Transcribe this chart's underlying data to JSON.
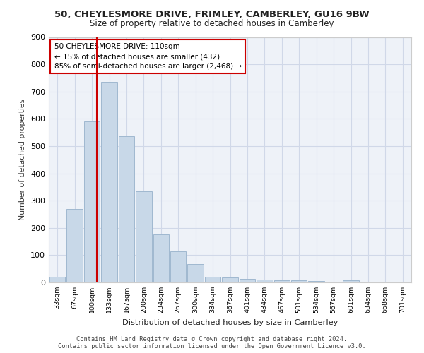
{
  "title1": "50, CHEYLESMORE DRIVE, FRIMLEY, CAMBERLEY, GU16 9BW",
  "title2": "Size of property relative to detached houses in Camberley",
  "xlabel": "Distribution of detached houses by size in Camberley",
  "ylabel": "Number of detached properties",
  "bin_labels": [
    "33sqm",
    "67sqm",
    "100sqm",
    "133sqm",
    "167sqm",
    "200sqm",
    "234sqm",
    "267sqm",
    "300sqm",
    "334sqm",
    "367sqm",
    "401sqm",
    "434sqm",
    "467sqm",
    "501sqm",
    "534sqm",
    "567sqm",
    "601sqm",
    "634sqm",
    "668sqm",
    "701sqm"
  ],
  "bar_heights": [
    20,
    270,
    590,
    735,
    535,
    335,
    175,
    115,
    68,
    22,
    18,
    12,
    10,
    8,
    7,
    4,
    0,
    8,
    0,
    0,
    0
  ],
  "bar_color": "#c8d8e8",
  "bar_edge_color": "#a0b8d0",
  "grid_color": "#d0d8e8",
  "background_color": "#eef2f8",
  "vline_color": "#cc0000",
  "annotation_text": "50 CHEYLESMORE DRIVE: 110sqm\n← 15% of detached houses are smaller (432)\n85% of semi-detached houses are larger (2,468) →",
  "annotation_box_color": "#ffffff",
  "annotation_box_edge": "#cc0000",
  "footer_text": "Contains HM Land Registry data © Crown copyright and database right 2024.\nContains public sector information licensed under the Open Government Licence v3.0.",
  "ylim": [
    0,
    900
  ],
  "yticks": [
    0,
    100,
    200,
    300,
    400,
    500,
    600,
    700,
    800,
    900
  ]
}
